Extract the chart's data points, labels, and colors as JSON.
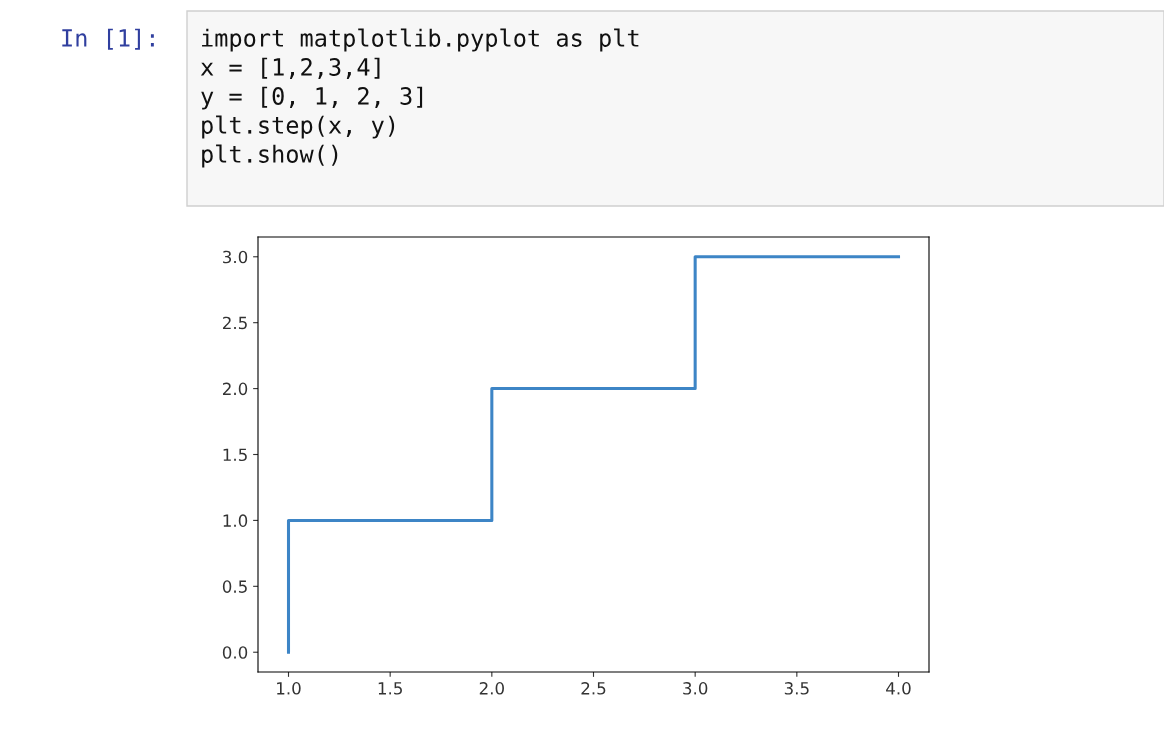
{
  "chart_data": {
    "type": "step",
    "annotations": [
      "In [1]:",
      "import matplotlib.pyplot as plt",
      "x = [1,2,3,4]",
      "y = [0, 1, 2, 3]",
      "plt.step(x, y)",
      "plt.show()"
    ],
    "x": [
      1,
      2,
      3,
      4
    ],
    "series": [
      {
        "color": "#3d85c6",
        "values": [
          0,
          1,
          2,
          3
        ]
      }
    ],
    "xlim": [
      0.85,
      4.15
    ],
    "xticks": [
      {
        "value": 1,
        "label": "1.0"
      },
      1.5,
      {
        "value": 2,
        "label": "2.0"
      },
      2.5,
      {
        "value": 3,
        "label": "3.0"
      },
      3.5,
      {
        "value": 4,
        "label": "4.0"
      }
    ],
    "ylim": [
      -0.15,
      3.15
    ],
    "yticks": [
      {
        "value": 0,
        "label": "0.0"
      },
      0.5,
      {
        "value": 1,
        "label": "1.0"
      },
      1.5,
      {
        "value": 2,
        "label": "2.0"
      },
      2.5,
      {
        "value": 3,
        "label": "3.0"
      }
    ],
    "grid": false,
    "legend": false
  }
}
